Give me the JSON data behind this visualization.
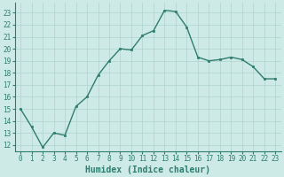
{
  "x": [
    0,
    1,
    2,
    3,
    4,
    5,
    6,
    7,
    8,
    9,
    10,
    11,
    12,
    13,
    14,
    15,
    16,
    17,
    18,
    19,
    20,
    21,
    22,
    23
  ],
  "y": [
    15,
    13.5,
    11.8,
    13.0,
    12.8,
    15.2,
    16.0,
    17.8,
    19.0,
    20.0,
    19.9,
    21.1,
    21.5,
    23.2,
    23.1,
    21.8,
    19.3,
    19.0,
    19.1,
    19.3,
    19.1,
    18.5,
    17.5,
    17.5
  ],
  "line_color": "#2e7d6e",
  "marker_color": "#2e7d6e",
  "bg_color": "#ceeae6",
  "grid_color": "#aed4ce",
  "xlabel": "Humidex (Indice chaleur)",
  "ylabel_ticks": [
    12,
    13,
    14,
    15,
    16,
    17,
    18,
    19,
    20,
    21,
    22,
    23
  ],
  "xlim": [
    -0.5,
    23.5
  ],
  "ylim": [
    11.5,
    23.8
  ],
  "tick_color": "#2e7d6e",
  "xlabel_fontsize": 7,
  "xtick_fontsize": 5.5,
  "ytick_fontsize": 5.5
}
